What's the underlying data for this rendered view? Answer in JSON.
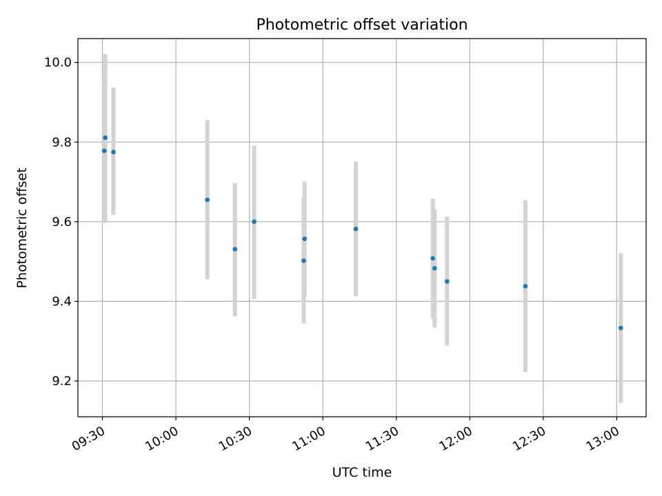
{
  "chart_data": {
    "type": "scatter",
    "title": "Photometric offset variation",
    "xlabel": "UTC time",
    "ylabel": "Photometric offset",
    "x_axis_type": "time",
    "xlim": [
      "09:20",
      "13:12"
    ],
    "ylim": [
      9.11,
      10.06
    ],
    "grid": true,
    "x_ticks": [
      "09:30",
      "10:00",
      "10:30",
      "11:00",
      "11:30",
      "12:00",
      "12:30",
      "13:00"
    ],
    "y_ticks": [
      9.2,
      9.4,
      9.6,
      9.8,
      10.0
    ],
    "y_tick_labels": [
      "9.2",
      "9.4",
      "9.6",
      "9.8",
      "10.0"
    ],
    "point_color": "#1f77b4",
    "errorbar_color": "#d3d3d3",
    "points": [
      {
        "time": "09:30:47",
        "y": 9.778,
        "err_low": 9.597,
        "err_high": 9.96
      },
      {
        "time": "09:31:09",
        "y": 9.811,
        "err_low": 9.6,
        "err_high": 10.021
      },
      {
        "time": "09:34:30",
        "y": 9.775,
        "err_low": 9.618,
        "err_high": 9.937
      },
      {
        "time": "10:12:50",
        "y": 9.655,
        "err_low": 9.455,
        "err_high": 9.855
      },
      {
        "time": "10:24:07",
        "y": 9.531,
        "err_low": 9.362,
        "err_high": 9.697
      },
      {
        "time": "10:31:57",
        "y": 9.6,
        "err_low": 9.406,
        "err_high": 9.791
      },
      {
        "time": "10:52:11",
        "y": 9.502,
        "err_low": 9.345,
        "err_high": 9.662
      },
      {
        "time": "10:52:33",
        "y": 9.557,
        "err_low": 9.413,
        "err_high": 9.701
      },
      {
        "time": "11:13:28",
        "y": 9.582,
        "err_low": 9.413,
        "err_high": 9.751
      },
      {
        "time": "11:44:54",
        "y": 9.508,
        "err_low": 9.357,
        "err_high": 9.658
      },
      {
        "time": "11:45:38",
        "y": 9.483,
        "err_low": 9.334,
        "err_high": 9.632
      },
      {
        "time": "11:50:43",
        "y": 9.45,
        "err_low": 9.289,
        "err_high": 9.613
      },
      {
        "time": "12:22:42",
        "y": 9.438,
        "err_low": 9.222,
        "err_high": 9.654
      },
      {
        "time": "13:01:40",
        "y": 9.333,
        "err_low": 9.145,
        "err_high": 9.521
      }
    ]
  }
}
